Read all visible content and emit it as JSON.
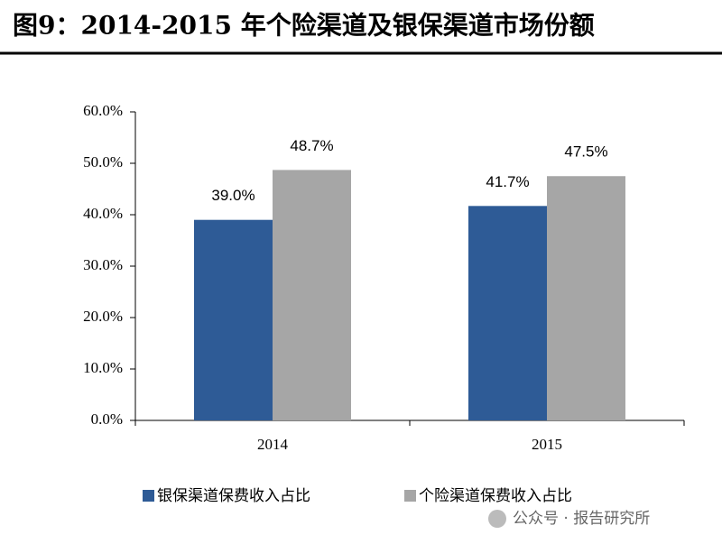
{
  "chart_data": {
    "type": "bar",
    "title": "图9：2014-2015 年个险渠道及银保渠道市场份额",
    "categories": [
      "2014",
      "2015"
    ],
    "series": [
      {
        "name": "银保渠道保费收入占比",
        "color": "#2e5b96",
        "values": [
          39.0,
          41.7
        ],
        "value_labels": [
          "39.0%",
          "41.7%"
        ]
      },
      {
        "name": "个险渠道保费收入占比",
        "color": "#a6a6a6",
        "values": [
          48.7,
          47.5
        ],
        "value_labels": [
          "48.7%",
          "47.5%"
        ]
      }
    ],
    "ylim": [
      0,
      60
    ],
    "yticks": [
      {
        "value": 0,
        "label": "0.0%"
      },
      {
        "value": 10,
        "label": "10.0%"
      },
      {
        "value": 20,
        "label": "20.0%"
      },
      {
        "value": 30,
        "label": "30.0%"
      },
      {
        "value": 40,
        "label": "40.0%"
      },
      {
        "value": 50,
        "label": "50.0%"
      },
      {
        "value": 60,
        "label": "60.0%"
      }
    ],
    "grid": false,
    "legend": "bottom",
    "watermark": "公众号 · 报告研究所"
  }
}
